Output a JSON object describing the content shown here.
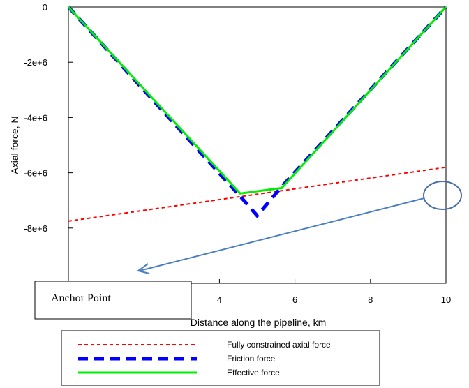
{
  "chart_data": {
    "type": "line",
    "title": "",
    "xlabel": "Distance along the pipeline, km",
    "ylabel": "Axial force, N",
    "xlim": [
      0,
      10
    ],
    "ylim": [
      -10000000,
      0
    ],
    "x_ticks": [
      4,
      6,
      8,
      10
    ],
    "x_tick_labels": [
      "4",
      "6",
      "8",
      "10"
    ],
    "y_ticks": [
      0,
      -2000000,
      -4000000,
      -6000000,
      -8000000
    ],
    "y_tick_labels": [
      "0",
      "-2e+6",
      "-4e+6",
      "-6e+6",
      "-8e+6"
    ],
    "grid": false,
    "legend_position": "bottom",
    "series": [
      {
        "name": "Fully constrained axial force",
        "color": "#ff0000",
        "style": "dashed-thin",
        "x": [
          0,
          10
        ],
        "y": [
          -7750000,
          -5800000
        ]
      },
      {
        "name": "Friction force",
        "color": "#0000ff",
        "style": "dashed-thick",
        "x": [
          0,
          4.55,
          5.0,
          5.65,
          10
        ],
        "y": [
          0,
          -6850000,
          -7550000,
          -6500000,
          0
        ]
      },
      {
        "name": "Effective force",
        "color": "#00ee00",
        "style": "solid",
        "x": [
          0,
          4.55,
          5.65,
          10
        ],
        "y": [
          0,
          -6750000,
          -6550000,
          0
        ]
      }
    ],
    "annotations": [
      {
        "text": "Anchor Point"
      }
    ]
  }
}
